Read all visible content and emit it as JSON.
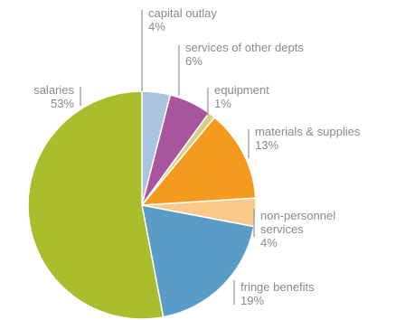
{
  "chart_data": {
    "type": "pie",
    "title": "",
    "slices": [
      {
        "label": "capital outlay",
        "value": 4,
        "value_label": "4%",
        "color": "#a8c4df"
      },
      {
        "label": "services of other depts",
        "value": 6,
        "value_label": "6%",
        "color": "#a8559d"
      },
      {
        "label": "equipment",
        "value": 1,
        "value_label": "1%",
        "color": "#d4d08a"
      },
      {
        "label": "materials & supplies",
        "value": 13,
        "value_label": "13%",
        "color": "#f49a1e"
      },
      {
        "label": "non-personnel services",
        "label_lines": [
          "non-personnel",
          "services"
        ],
        "value": 4,
        "value_label": "4%",
        "color": "#fbc98a"
      },
      {
        "label": "fringe benefits",
        "value": 19,
        "value_label": "19%",
        "color": "#5a9cc8"
      },
      {
        "label": "salaries",
        "value": 53,
        "value_label": "53%",
        "color": "#a9bd2d"
      }
    ]
  }
}
